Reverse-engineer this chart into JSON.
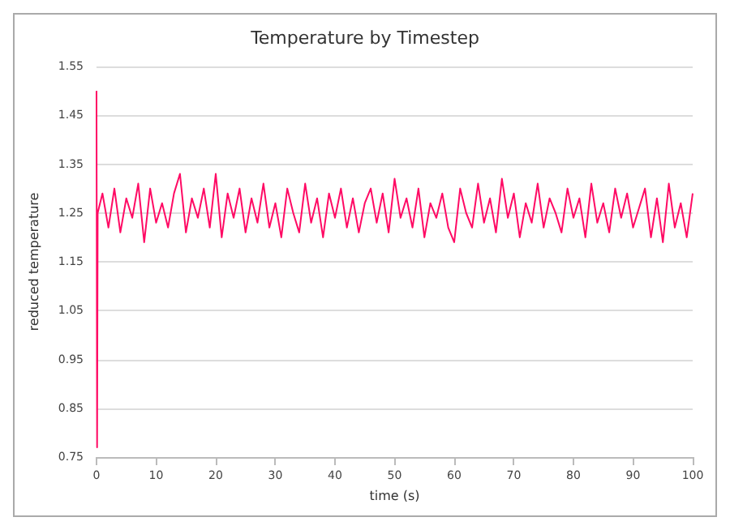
{
  "chart_data": {
    "type": "line",
    "title": "Temperature by Timestep",
    "xlabel": "time (s)",
    "ylabel": "reduced temperature",
    "x": [
      0,
      0.1,
      0.2,
      1,
      2,
      3,
      4,
      5,
      6,
      7,
      8,
      9,
      10,
      11,
      12,
      13,
      14,
      15,
      16,
      17,
      18,
      19,
      20,
      21,
      22,
      23,
      24,
      25,
      26,
      27,
      28,
      29,
      30,
      31,
      32,
      33,
      34,
      35,
      36,
      37,
      38,
      39,
      40,
      41,
      42,
      43,
      44,
      45,
      46,
      47,
      48,
      49,
      50,
      51,
      52,
      53,
      54,
      55,
      56,
      57,
      58,
      59,
      60,
      61,
      62,
      63,
      64,
      65,
      66,
      67,
      68,
      69,
      70,
      71,
      72,
      73,
      74,
      75,
      76,
      77,
      78,
      79,
      80,
      81,
      82,
      83,
      84,
      85,
      86,
      87,
      88,
      89,
      90,
      91,
      92,
      93,
      94,
      95,
      96,
      97,
      98,
      99,
      100
    ],
    "series": [
      {
        "color": "#ff0a64",
        "values": [
          1.5,
          0.77,
          1.25,
          1.29,
          1.22,
          1.3,
          1.21,
          1.28,
          1.24,
          1.31,
          1.19,
          1.3,
          1.23,
          1.27,
          1.22,
          1.29,
          1.33,
          1.21,
          1.28,
          1.24,
          1.3,
          1.22,
          1.33,
          1.2,
          1.29,
          1.24,
          1.3,
          1.21,
          1.28,
          1.23,
          1.31,
          1.22,
          1.27,
          1.2,
          1.3,
          1.25,
          1.21,
          1.31,
          1.23,
          1.28,
          1.2,
          1.29,
          1.24,
          1.3,
          1.22,
          1.28,
          1.21,
          1.27,
          1.3,
          1.23,
          1.29,
          1.21,
          1.32,
          1.24,
          1.28,
          1.22,
          1.3,
          1.2,
          1.27,
          1.24,
          1.29,
          1.22,
          1.19,
          1.3,
          1.25,
          1.22,
          1.31,
          1.23,
          1.28,
          1.21,
          1.32,
          1.24,
          1.29,
          1.2,
          1.27,
          1.23,
          1.31,
          1.22,
          1.28,
          1.25,
          1.21,
          1.3,
          1.24,
          1.28,
          1.2,
          1.31,
          1.23,
          1.27,
          1.21,
          1.3,
          1.24,
          1.29,
          1.22,
          1.26,
          1.3,
          1.2,
          1.28,
          1.19,
          1.31,
          1.22,
          1.27,
          1.2,
          1.29
        ]
      }
    ],
    "xlim": [
      0,
      100
    ],
    "xticks": [
      0,
      10,
      20,
      30,
      40,
      50,
      60,
      70,
      80,
      90,
      100
    ],
    "ylim": [
      0.75,
      1.55
    ],
    "yticks": [
      0.75,
      0.85,
      0.95,
      1.05,
      1.15,
      1.25,
      1.35,
      1.45,
      1.55
    ],
    "grid": "y",
    "marker": "none",
    "line_style": "solid"
  }
}
